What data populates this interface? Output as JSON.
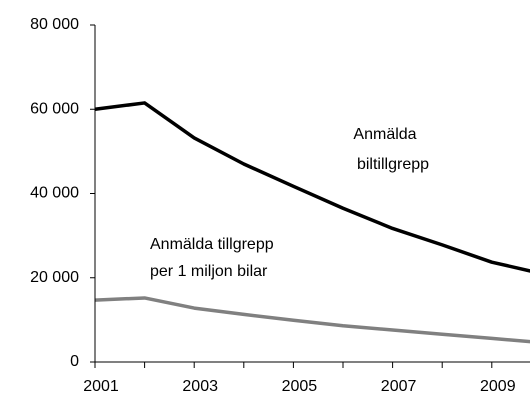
{
  "chart_data": {
    "type": "line",
    "x": [
      2001,
      2002,
      2003,
      2004,
      2005,
      2006,
      2007,
      2008,
      2009,
      2010
    ],
    "series": [
      {
        "color": "#000000",
        "values": [
          60000,
          61500,
          53200,
          47000,
          41700,
          36500,
          31700,
          27800,
          23700,
          21000
        ]
      },
      {
        "color": "#808080",
        "values": [
          14700,
          15200,
          12800,
          11300,
          9900,
          8600,
          7600,
          6600,
          5600,
          4600
        ]
      }
    ],
    "xlim": [
      2001,
      2010
    ],
    "xticks": [
      2001,
      2003,
      2005,
      2007,
      2009
    ],
    "ylim": [
      0,
      80000
    ],
    "yticks": [
      {
        "value": 0,
        "label": "0"
      },
      {
        "value": 20000,
        "label": "20 000"
      },
      {
        "value": 40000,
        "label": "40 000"
      },
      {
        "value": 60000,
        "label": "60 000"
      },
      {
        "value": 80000,
        "label": "80 000"
      }
    ],
    "annotations": [
      {
        "lines": [
          "Anmälda",
          "biltillgrepp"
        ]
      },
      {
        "lines": [
          "Anmälda tillgrepp",
          "per 1 miljon bilar"
        ]
      }
    ],
    "grid": false
  }
}
